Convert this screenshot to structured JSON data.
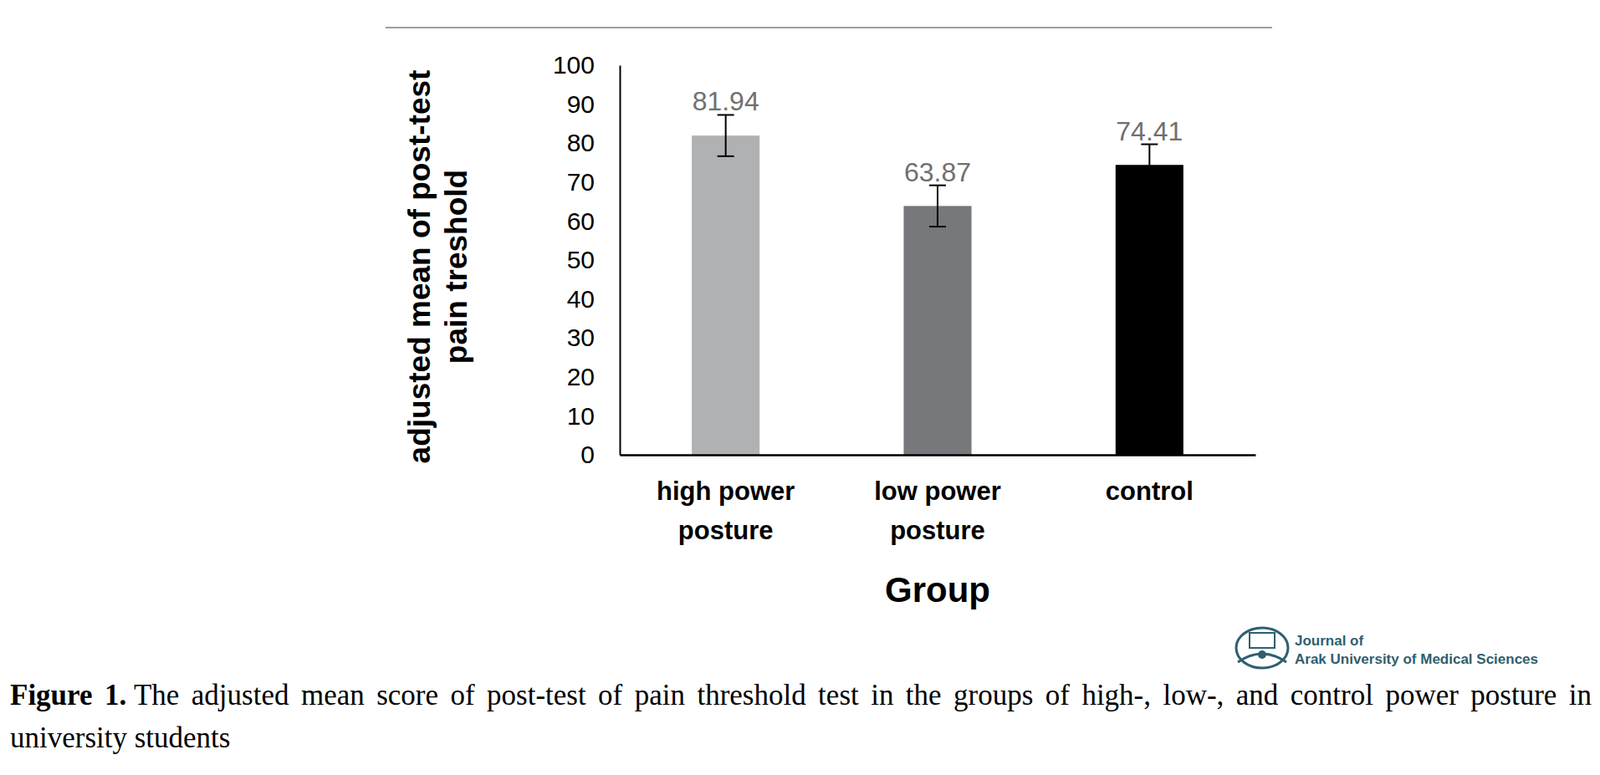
{
  "chart_data": {
    "type": "bar",
    "categories": [
      "high power posture",
      "low power posture",
      "control"
    ],
    "values": [
      81.94,
      63.87,
      74.41
    ],
    "errors": [
      5.3,
      5.3,
      5.3
    ],
    "colors": [
      "#b0b1b3",
      "#77787b",
      "#000000"
    ],
    "x_label": "Group",
    "y_label": "adjusted mean of post-test pain treshold",
    "ylim": [
      0,
      100
    ],
    "yticks": [
      0,
      10,
      20,
      30,
      40,
      50,
      60,
      70,
      80,
      90,
      100
    ],
    "grid": false,
    "data_labels": true,
    "caption": {
      "label": "Figure 1.",
      "text": "The adjusted mean score of post-test of pain threshold test in the groups of high-, low-, and control power posture in university students"
    },
    "source": [
      "Journal of",
      "Arak University of Medical Sciences"
    ]
  }
}
